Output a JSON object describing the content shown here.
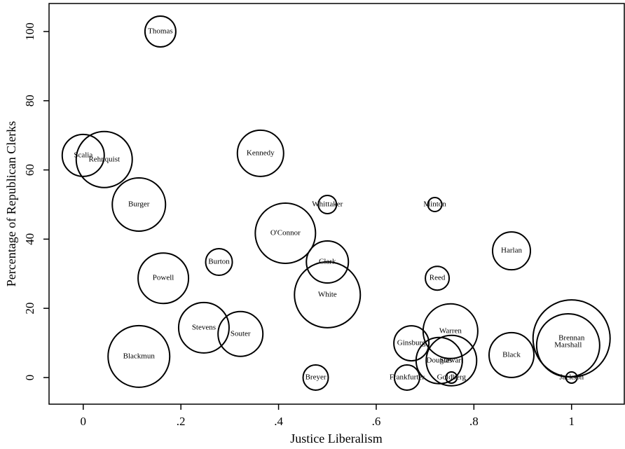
{
  "chart_data": {
    "type": "bubble",
    "x_label": "Justice Liberalism",
    "y_label": "Percentage of Republican Clerks",
    "labels": [
      "Thomas",
      "Scalia",
      "Rehnquist",
      "Burger",
      "Kennedy",
      "Whittaker",
      "Minton",
      "O'Connor",
      "Burton",
      "Clark",
      "Harlan",
      "Reed",
      "Powell",
      "White",
      "Stevens",
      "Souter",
      "Blackmun",
      "Breyer",
      "Ginsburg",
      "Warren",
      "Douglas",
      "Stewart",
      "Frankfurter",
      "Goldberg",
      "Black",
      "Brennan",
      "Marshall",
      "Jackson"
    ],
    "x": [
      0.158,
      0,
      0.043,
      0.114,
      0.363,
      0.5,
      0.72,
      0.414,
      0.278,
      0.5,
      0.877,
      0.725,
      0.164,
      0.5,
      0.247,
      0.322,
      0.114,
      0.476,
      0.672,
      0.752,
      0.729,
      0.754,
      0.663,
      0.754,
      0.877,
      1,
      0.993,
      1
    ],
    "values": [
      100,
      64.2,
      63,
      50,
      64.8,
      50,
      50,
      41.7,
      33.4,
      33.4,
      36.6,
      28.7,
      28.7,
      23.9,
      14.4,
      12.6,
      6.1,
      0,
      9.9,
      13.4,
      4.9,
      4.9,
      0,
      0,
      6.5,
      11.3,
      9.3,
      0
    ],
    "sizes": [
      4.84,
      9,
      16,
      14.44,
      10.89,
      1.69,
      1,
      18.49,
      3.61,
      9,
      7.29,
      2.89,
      12.96,
      22.09,
      12.96,
      10.24,
      19.36,
      3.24,
      6.25,
      15.21,
      10.89,
      12.96,
      3.24,
      0.64,
      10.24,
      30.25,
      20.25,
      0.64
    ],
    "color": "#000000",
    "xlim": [
      -0.07,
      1.108
    ],
    "ylim": [
      -7.7,
      108.1
    ],
    "xticks": [
      0,
      {
        "value": 0.2,
        "label": ".2"
      },
      {
        "value": 0.4,
        "label": ".4"
      },
      {
        "value": 0.6,
        "label": ".6"
      },
      {
        "value": 0.8,
        "label": ".8"
      },
      1
    ],
    "yticks": [
      0,
      20,
      40,
      60,
      80,
      100
    ]
  }
}
